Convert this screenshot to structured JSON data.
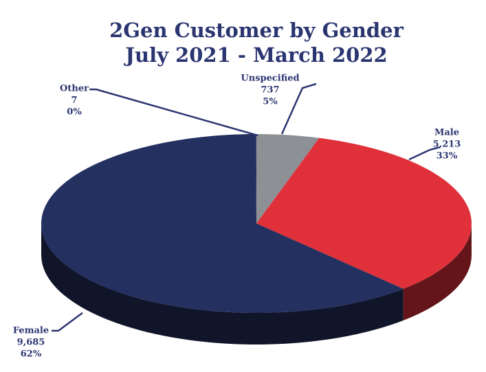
{
  "chart_data": {
    "type": "pie",
    "title": "2Gen Customer by Gender",
    "subtitle": "July 2021 - March 2022",
    "categories": [
      "Unspecified",
      "Male",
      "Female",
      "Other"
    ],
    "values": [
      737,
      5213,
      9685,
      7
    ],
    "value_labels": [
      "737",
      "5,213",
      "9,685",
      "7"
    ],
    "percent_labels": [
      "5%",
      "33%",
      "62%",
      "0%"
    ],
    "colors": [
      "#8d9195",
      "#e0303a",
      "#24305f",
      "#24305f"
    ]
  }
}
